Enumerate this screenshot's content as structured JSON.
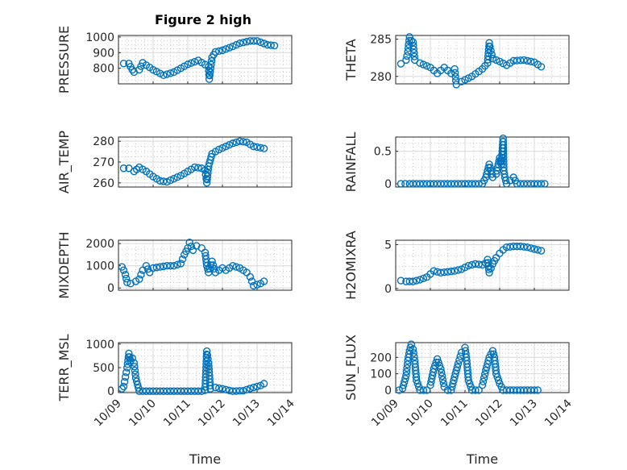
{
  "title": "Figure 2 high",
  "marker_color": "#0072BD",
  "chart_data": [
    {
      "id": "pressure",
      "type": "scatter",
      "ylabel": "PRESSURE",
      "ylim": [
        700,
        1010
      ],
      "yticks": [
        800,
        900,
        1000
      ],
      "xlim": [
        0,
        5
      ],
      "xticks": [
        0,
        1,
        2,
        3,
        4,
        5
      ],
      "show_xticklabels": false,
      "series": [
        {
          "points": [
            [
              0.15,
              830
            ],
            [
              0.3,
              830
            ],
            [
              0.4,
              790
            ],
            [
              0.45,
              775
            ],
            [
              0.6,
              790
            ],
            [
              0.7,
              835
            ],
            [
              1.0,
              790
            ],
            [
              1.3,
              755
            ],
            [
              1.6,
              775
            ],
            [
              2.0,
              825
            ],
            [
              2.3,
              850
            ],
            [
              2.6,
              810
            ],
            [
              2.62,
              730
            ],
            [
              2.7,
              870
            ],
            [
              2.8,
              905
            ],
            [
              3.0,
              915
            ],
            [
              3.3,
              940
            ],
            [
              3.5,
              960
            ],
            [
              3.8,
              975
            ],
            [
              4.0,
              975
            ],
            [
              4.3,
              950
            ],
            [
              4.5,
              945
            ]
          ]
        }
      ]
    },
    {
      "id": "theta",
      "type": "scatter",
      "ylabel": "THETA",
      "ylim": [
        279,
        285.5
      ],
      "yticks": [
        280,
        285
      ],
      "xlim": [
        0,
        5
      ],
      "xticks": [
        0,
        1,
        2,
        3,
        4,
        5
      ],
      "show_xticklabels": false,
      "series": [
        {
          "points": [
            [
              0.15,
              281.7
            ],
            [
              0.3,
              282.2
            ],
            [
              0.35,
              283.3
            ],
            [
              0.4,
              285.3
            ],
            [
              0.45,
              284.8
            ],
            [
              0.5,
              284.6
            ],
            [
              0.55,
              282.2
            ],
            [
              0.7,
              281.8
            ],
            [
              1.0,
              281.2
            ],
            [
              1.2,
              280.4
            ],
            [
              1.4,
              281.2
            ],
            [
              1.6,
              280.4
            ],
            [
              1.7,
              281.0
            ],
            [
              1.75,
              278.9
            ],
            [
              1.9,
              279.3
            ],
            [
              2.2,
              280.0
            ],
            [
              2.5,
              281.0
            ],
            [
              2.65,
              281.8
            ],
            [
              2.7,
              284.5
            ],
            [
              2.72,
              284.0
            ],
            [
              2.8,
              282.4
            ],
            [
              3.0,
              282.0
            ],
            [
              3.2,
              281.5
            ],
            [
              3.4,
              282.1
            ],
            [
              3.7,
              282.2
            ],
            [
              4.0,
              281.9
            ],
            [
              4.2,
              281.3
            ]
          ]
        }
      ]
    },
    {
      "id": "air_temp",
      "type": "scatter",
      "ylabel": "AIR_TEMP",
      "ylim": [
        258,
        282
      ],
      "yticks": [
        260,
        270,
        280
      ],
      "xlim": [
        0,
        5
      ],
      "xticks": [
        0,
        1,
        2,
        3,
        4,
        5
      ],
      "show_xticklabels": false,
      "series": [
        {
          "points": [
            [
              0.15,
              267
            ],
            [
              0.3,
              267
            ],
            [
              0.45,
              265.5
            ],
            [
              0.6,
              267.5
            ],
            [
              0.8,
              265.5
            ],
            [
              1.0,
              263
            ],
            [
              1.2,
              261
            ],
            [
              1.4,
              260.5
            ],
            [
              1.6,
              262
            ],
            [
              1.8,
              263.5
            ],
            [
              2.0,
              265.5
            ],
            [
              2.2,
              267.5
            ],
            [
              2.4,
              267
            ],
            [
              2.5,
              266
            ],
            [
              2.55,
              260
            ],
            [
              2.6,
              268
            ],
            [
              2.65,
              271
            ],
            [
              2.7,
              274
            ],
            [
              2.9,
              276
            ],
            [
              3.1,
              277.5
            ],
            [
              3.3,
              279
            ],
            [
              3.5,
              280
            ],
            [
              3.7,
              279.5
            ],
            [
              3.9,
              277.5
            ],
            [
              4.2,
              276.5
            ]
          ]
        }
      ]
    },
    {
      "id": "rainfall",
      "type": "scatter",
      "ylabel": "RAINFALL",
      "ylim": [
        -0.05,
        0.72
      ],
      "yticks": [
        0,
        0.5
      ],
      "xlim": [
        0,
        5
      ],
      "xticks": [
        0,
        1,
        2,
        3,
        4,
        5
      ],
      "show_xticklabels": false,
      "series": [
        {
          "points": [
            [
              0.15,
              0
            ],
            [
              0.4,
              0
            ],
            [
              0.7,
              0
            ],
            [
              1.0,
              0
            ],
            [
              1.3,
              0
            ],
            [
              1.6,
              0
            ],
            [
              1.9,
              0
            ],
            [
              2.2,
              0
            ],
            [
              2.5,
              0
            ],
            [
              2.6,
              0.1
            ],
            [
              2.65,
              0.2
            ],
            [
              2.7,
              0.3
            ],
            [
              2.75,
              0.2
            ],
            [
              2.8,
              0.1
            ],
            [
              2.9,
              0.15
            ],
            [
              3.0,
              0.4
            ],
            [
              3.05,
              0.3
            ],
            [
              3.1,
              0.7
            ],
            [
              3.12,
              0.2
            ],
            [
              3.15,
              0.1
            ],
            [
              3.2,
              0
            ],
            [
              3.4,
              0.1
            ],
            [
              3.5,
              0
            ],
            [
              3.8,
              0
            ],
            [
              4.1,
              0
            ],
            [
              4.3,
              0
            ]
          ]
        }
      ]
    },
    {
      "id": "mixdepth",
      "type": "scatter",
      "ylabel": "MIXDEPTH",
      "ylim": [
        -100,
        2150
      ],
      "yticks": [
        0,
        1000,
        2000
      ],
      "xlim": [
        0,
        5
      ],
      "xticks": [
        0,
        1,
        2,
        3,
        4,
        5
      ],
      "show_xticklabels": false,
      "series": [
        {
          "points": [
            [
              0.1,
              950
            ],
            [
              0.15,
              800
            ],
            [
              0.2,
              600
            ],
            [
              0.25,
              250
            ],
            [
              0.35,
              200
            ],
            [
              0.5,
              300
            ],
            [
              0.6,
              400
            ],
            [
              0.7,
              800
            ],
            [
              0.8,
              1000
            ],
            [
              0.9,
              700
            ],
            [
              1.0,
              900
            ],
            [
              1.2,
              950
            ],
            [
              1.4,
              1000
            ],
            [
              1.6,
              1000
            ],
            [
              1.8,
              1100
            ],
            [
              1.9,
              1500
            ],
            [
              2.0,
              1800
            ],
            [
              2.05,
              2050
            ],
            [
              2.15,
              1700
            ],
            [
              2.25,
              1900
            ],
            [
              2.4,
              1800
            ],
            [
              2.5,
              1600
            ],
            [
              2.55,
              1000
            ],
            [
              2.6,
              700
            ],
            [
              2.7,
              1200
            ],
            [
              2.8,
              700
            ],
            [
              3.0,
              900
            ],
            [
              3.1,
              800
            ],
            [
              3.3,
              1000
            ],
            [
              3.5,
              900
            ],
            [
              3.7,
              700
            ],
            [
              3.8,
              500
            ],
            [
              3.9,
              100
            ],
            [
              4.0,
              150
            ],
            [
              4.1,
              200
            ],
            [
              4.2,
              300
            ]
          ]
        }
      ]
    },
    {
      "id": "h2omixra",
      "type": "scatter",
      "ylabel": "H2OMIXRA",
      "ylim": [
        -0.2,
        5.5
      ],
      "yticks": [
        0,
        5
      ],
      "xlim": [
        0,
        5
      ],
      "xticks": [
        0,
        1,
        2,
        3,
        4,
        5
      ],
      "show_xticklabels": false,
      "series": [
        {
          "points": [
            [
              0.15,
              0.9
            ],
            [
              0.3,
              0.8
            ],
            [
              0.5,
              0.8
            ],
            [
              0.7,
              1.0
            ],
            [
              0.9,
              1.3
            ],
            [
              1.1,
              2.0
            ],
            [
              1.3,
              1.8
            ],
            [
              1.5,
              1.9
            ],
            [
              1.7,
              2.0
            ],
            [
              1.9,
              2.2
            ],
            [
              2.1,
              2.6
            ],
            [
              2.3,
              2.8
            ],
            [
              2.5,
              2.7
            ],
            [
              2.6,
              2.9
            ],
            [
              2.65,
              3.3
            ],
            [
              2.7,
              1.8
            ],
            [
              2.8,
              2.8
            ],
            [
              2.9,
              3.5
            ],
            [
              3.0,
              4.0
            ],
            [
              3.1,
              4.4
            ],
            [
              3.2,
              4.7
            ],
            [
              3.4,
              4.8
            ],
            [
              3.6,
              4.8
            ],
            [
              3.8,
              4.7
            ],
            [
              4.0,
              4.5
            ],
            [
              4.2,
              4.3
            ]
          ]
        }
      ]
    },
    {
      "id": "terr_msl",
      "type": "scatter",
      "ylabel": "TERR_MSL",
      "ylim": [
        -30,
        1030
      ],
      "yticks": [
        0,
        500,
        1000
      ],
      "xlim": [
        0,
        5
      ],
      "xticks": [
        0,
        1,
        2,
        3,
        4,
        5
      ],
      "show_xticklabels": true,
      "series": [
        {
          "points": [
            [
              0.1,
              50
            ],
            [
              0.15,
              100
            ],
            [
              0.2,
              300
            ],
            [
              0.25,
              500
            ],
            [
              0.3,
              800
            ],
            [
              0.35,
              650
            ],
            [
              0.4,
              700
            ],
            [
              0.45,
              600
            ],
            [
              0.5,
              280
            ],
            [
              0.6,
              0
            ],
            [
              0.9,
              0
            ],
            [
              1.2,
              0
            ],
            [
              1.5,
              0
            ],
            [
              1.8,
              0
            ],
            [
              2.1,
              0
            ],
            [
              2.4,
              0
            ],
            [
              2.5,
              20
            ],
            [
              2.55,
              850
            ],
            [
              2.6,
              600
            ],
            [
              2.65,
              50
            ],
            [
              2.8,
              80
            ],
            [
              3.0,
              50
            ],
            [
              3.3,
              0
            ],
            [
              3.6,
              10
            ],
            [
              3.9,
              80
            ],
            [
              4.1,
              120
            ],
            [
              4.2,
              160
            ]
          ]
        }
      ]
    },
    {
      "id": "sun_flux",
      "type": "scatter",
      "ylabel": "SUN_FLUX",
      "ylim": [
        -15,
        290
      ],
      "yticks": [
        0,
        100,
        200
      ],
      "xlim": [
        0,
        5
      ],
      "xticks": [
        0,
        1,
        2,
        3,
        4,
        5
      ],
      "show_xticklabels": true,
      "series": [
        {
          "points": [
            [
              0.1,
              0
            ],
            [
              0.2,
              10
            ],
            [
              0.3,
              90
            ],
            [
              0.35,
              180
            ],
            [
              0.4,
              240
            ],
            [
              0.45,
              280
            ],
            [
              0.5,
              250
            ],
            [
              0.55,
              180
            ],
            [
              0.6,
              60
            ],
            [
              0.7,
              0
            ],
            [
              0.9,
              0
            ],
            [
              1.0,
              30
            ],
            [
              1.1,
              130
            ],
            [
              1.2,
              190
            ],
            [
              1.3,
              130
            ],
            [
              1.4,
              20
            ],
            [
              1.5,
              0
            ],
            [
              1.6,
              0
            ],
            [
              1.7,
              80
            ],
            [
              1.8,
              160
            ],
            [
              1.9,
              230
            ],
            [
              2.0,
              260
            ],
            [
              2.05,
              180
            ],
            [
              2.1,
              60
            ],
            [
              2.2,
              0
            ],
            [
              2.4,
              0
            ],
            [
              2.5,
              30
            ],
            [
              2.6,
              120
            ],
            [
              2.7,
              200
            ],
            [
              2.8,
              240
            ],
            [
              2.85,
              200
            ],
            [
              2.9,
              100
            ],
            [
              3.0,
              40
            ],
            [
              3.1,
              0
            ],
            [
              3.3,
              0
            ],
            [
              3.5,
              0
            ],
            [
              3.7,
              0
            ],
            [
              3.9,
              0
            ],
            [
              4.1,
              0
            ]
          ]
        }
      ]
    }
  ],
  "xticklabels": [
    "10/09",
    "10/10",
    "10/11",
    "10/12",
    "10/13",
    "10/14"
  ],
  "xlabel": "Time"
}
